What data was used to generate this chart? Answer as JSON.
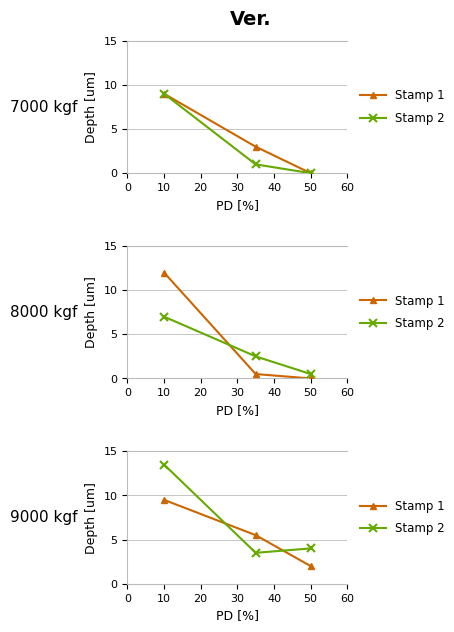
{
  "title": "Ver.",
  "subplots": [
    {
      "label": "7000 kgf",
      "stamp1": {
        "x": [
          10,
          35,
          50
        ],
        "y": [
          9,
          3,
          0
        ]
      },
      "stamp2": {
        "x": [
          10,
          35,
          50
        ],
        "y": [
          9,
          1,
          0
        ]
      }
    },
    {
      "label": "8000 kgf",
      "stamp1": {
        "x": [
          10,
          35,
          50
        ],
        "y": [
          12,
          0.5,
          0
        ]
      },
      "stamp2": {
        "x": [
          10,
          35,
          50
        ],
        "y": [
          7,
          2.5,
          0.5
        ]
      }
    },
    {
      "label": "9000 kgf",
      "stamp1": {
        "x": [
          10,
          35,
          50
        ],
        "y": [
          9.5,
          5.5,
          2
        ]
      },
      "stamp2": {
        "x": [
          10,
          35,
          50
        ],
        "y": [
          13.5,
          3.5,
          4
        ]
      }
    }
  ],
  "stamp1_color": "#CC6600",
  "stamp2_color": "#66AA00",
  "xlabel": "PD [%]",
  "ylabel": "Depth [um]",
  "ylim": [
    0,
    15
  ],
  "xlim": [
    0,
    60
  ],
  "xticks": [
    0,
    10,
    20,
    30,
    40,
    50,
    60
  ],
  "yticks": [
    0,
    5,
    10,
    15
  ],
  "legend_stamp1": "Stamp 1",
  "legend_stamp2": "Stamp 2",
  "label_fontsize": 9,
  "tick_fontsize": 8,
  "title_fontsize": 14,
  "subplot_label_fontsize": 11
}
